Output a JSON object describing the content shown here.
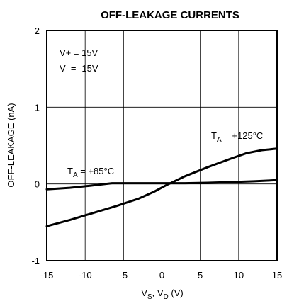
{
  "chart_data": {
    "type": "line",
    "title": "OFF-LEAKAGE CURRENTS",
    "xlabel": {
      "base1": "V",
      "sub1": "S",
      "sep": ", ",
      "base2": "V",
      "sub2": "D",
      "unit": " (V)"
    },
    "ylabel": "OFF-LEAKAGE (nA)",
    "xlim": [
      -15,
      15
    ],
    "ylim": [
      -1,
      2
    ],
    "xticks": [
      -15,
      -10,
      -5,
      0,
      5,
      10,
      15
    ],
    "yticks": [
      -1,
      0,
      1,
      2
    ],
    "grid": true,
    "annotations": {
      "supply_pos": "V+ = 15V",
      "supply_neg": "V- = -15V"
    },
    "series": [
      {
        "name": {
          "base": "T",
          "sub": "A",
          "rest": " = +85°C"
        },
        "x": [
          -15,
          -12,
          -9,
          -6.5,
          -3,
          0,
          3,
          6,
          9,
          12,
          15
        ],
        "y": [
          -0.07,
          -0.05,
          -0.02,
          0.01,
          0.01,
          0.01,
          0.01,
          0.015,
          0.025,
          0.035,
          0.05
        ]
      },
      {
        "name": {
          "base": "T",
          "sub": "A",
          "rest": " = +125°C"
        },
        "x": [
          -15,
          -12,
          -9,
          -6,
          -3,
          -1,
          0.5,
          3,
          6,
          9,
          11,
          13,
          15
        ],
        "y": [
          -0.55,
          -0.47,
          -0.38,
          -0.29,
          -0.19,
          -0.1,
          -0.02,
          0.1,
          0.22,
          0.33,
          0.4,
          0.44,
          0.46
        ]
      }
    ]
  }
}
